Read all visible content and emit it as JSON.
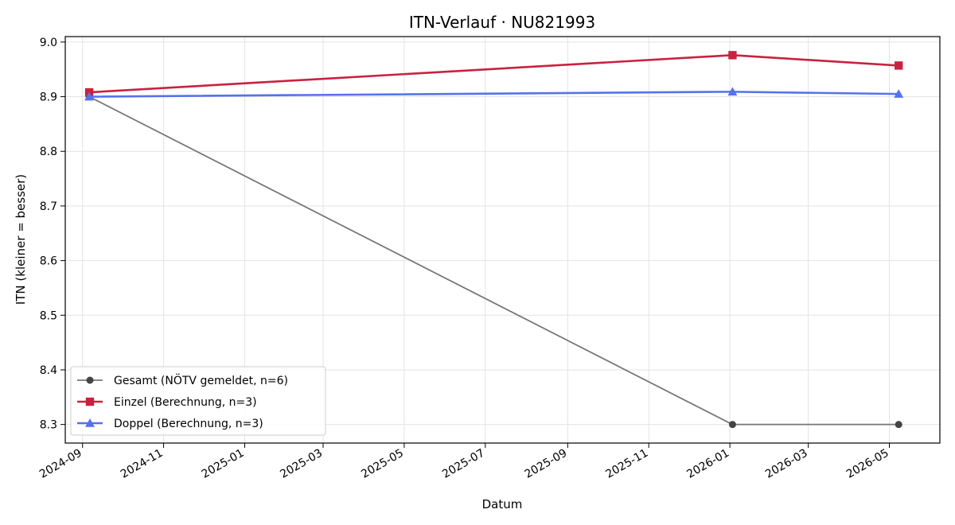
{
  "chart_data": {
    "type": "line",
    "title": "ITN-Verlauf · NU821993",
    "xlabel": "Datum",
    "ylabel": "ITN  (kleiner = besser)",
    "x_type": "date",
    "xlim": [
      "2024-08-19",
      "2026-06-08"
    ],
    "ylim": [
      8.266,
      9.01
    ],
    "y_ticks": [
      8.3,
      8.4,
      8.5,
      8.6,
      8.7,
      8.8,
      8.9,
      9.0
    ],
    "y_tick_labels": [
      "8.3",
      "8.4",
      "8.5",
      "8.6",
      "8.7",
      "8.8",
      "8.9",
      "9.0"
    ],
    "x_ticks": [
      "2024-09-01",
      "2024-11-01",
      "2025-01-01",
      "2025-03-01",
      "2025-05-01",
      "2025-07-01",
      "2025-09-01",
      "2025-11-01",
      "2026-01-01",
      "2026-03-01",
      "2026-05-01"
    ],
    "x_tick_labels": [
      "2024-09",
      "2024-11",
      "2025-01",
      "2025-03",
      "2025-05",
      "2025-07",
      "2025-09",
      "2025-11",
      "2026-01",
      "2026-03",
      "2026-05"
    ],
    "grid": true,
    "legend_position": "lower-left",
    "series": [
      {
        "name": "Gesamt (NÖTV gemeldet, n=6)",
        "color": "#777777",
        "marker_color": "#444444",
        "marker": "circle",
        "x": [
          "2024-09-06",
          "2026-01-03",
          "2026-05-08"
        ],
        "y": [
          8.9,
          8.3,
          8.3
        ]
      },
      {
        "name": "Einzel (Berechnung, n=3)",
        "color": "#c8223f",
        "marker_color": "#c8223f",
        "marker": "square",
        "x": [
          "2024-09-06",
          "2026-01-03",
          "2026-05-08"
        ],
        "y": [
          8.908,
          8.976,
          8.957
        ]
      },
      {
        "name": "Doppel (Berechnung, n=3)",
        "color": "#5572ec",
        "marker_color": "#5572ec",
        "marker": "triangle",
        "x": [
          "2024-09-06",
          "2026-01-03",
          "2026-05-08"
        ],
        "y": [
          8.9,
          8.909,
          8.905
        ]
      }
    ]
  }
}
